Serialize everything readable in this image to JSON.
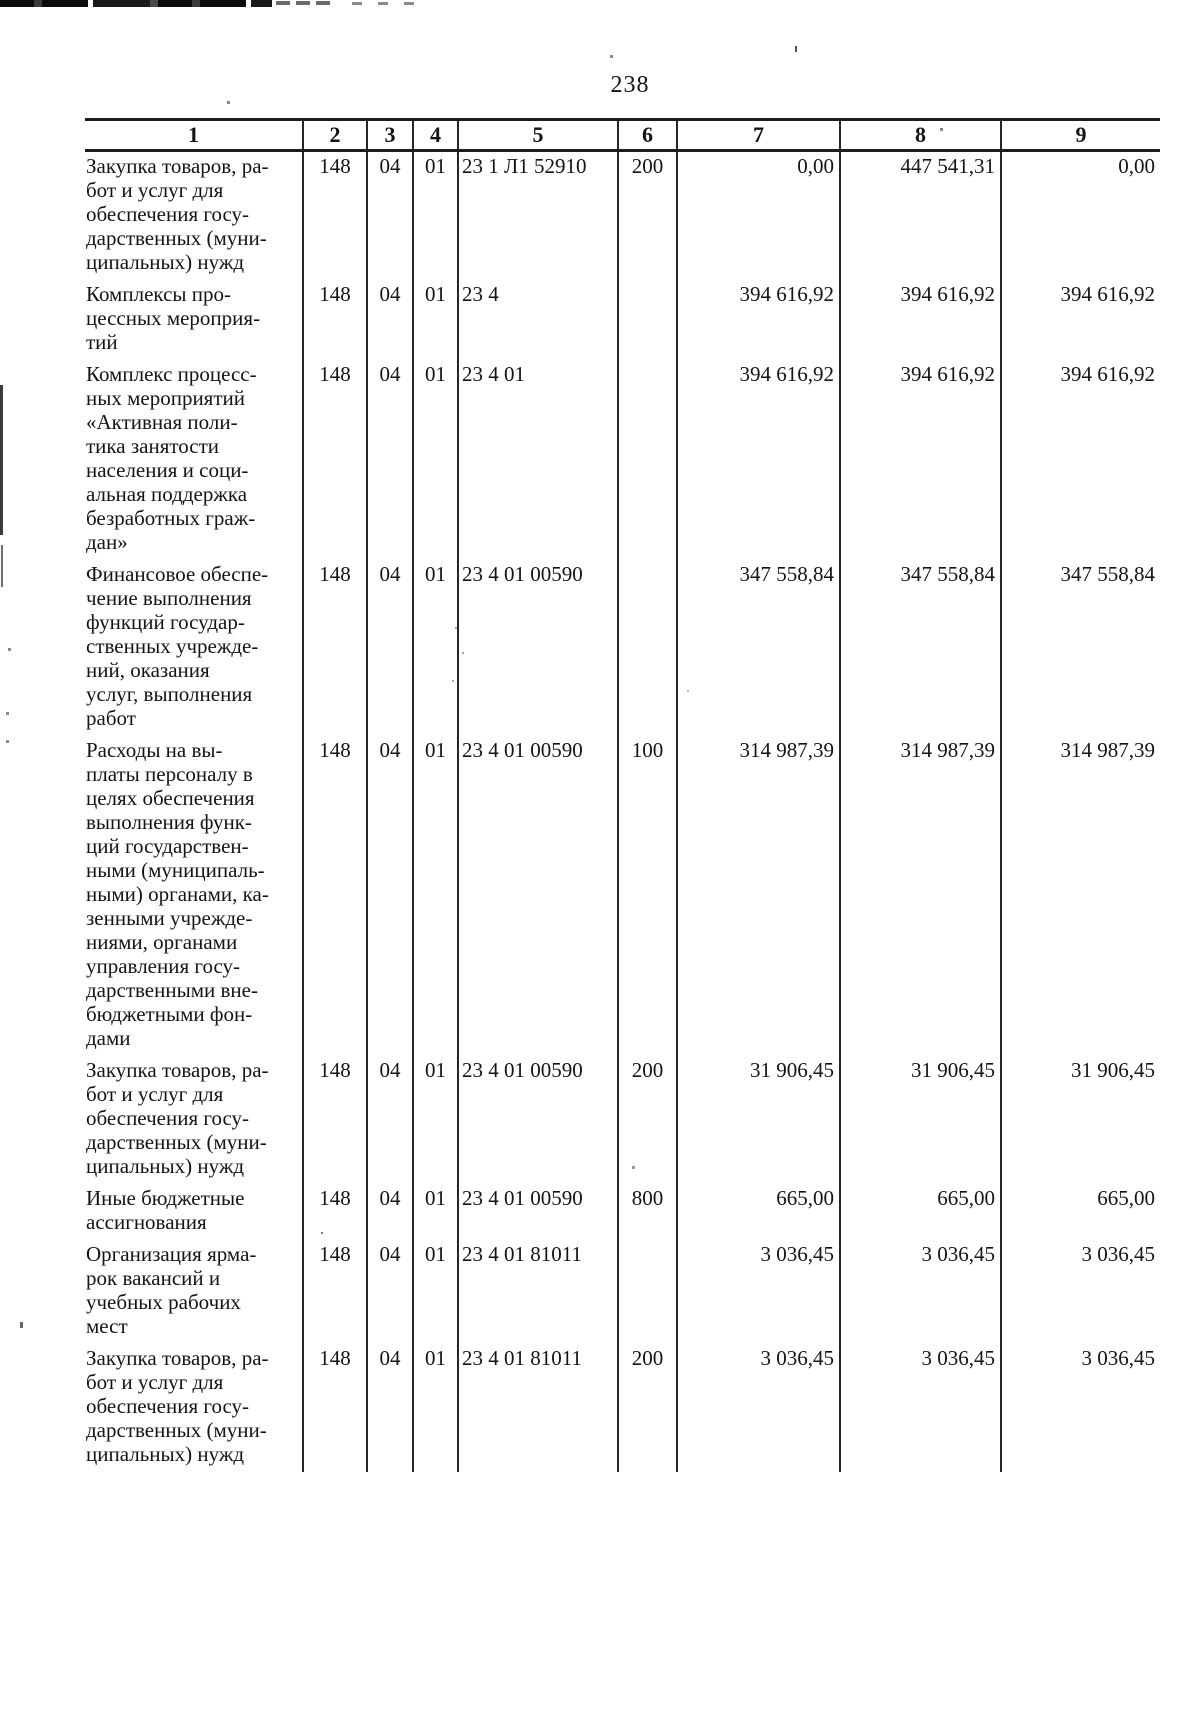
{
  "page": {
    "number": "238"
  },
  "table": {
    "headers": [
      "1",
      "2",
      "3",
      "4",
      "5",
      "6",
      "7",
      "8",
      "9"
    ],
    "rows": [
      {
        "name": [
          "Закупка товаров, ра-",
          "бот и услуг для",
          "обеспечения госу-",
          "дарственных (муни-",
          "ципальных) нужд"
        ],
        "grbs": "148",
        "razdel": "04",
        "podrazdel": "01",
        "csr": "23 1 Л1 52910",
        "vr": "200",
        "sum1": "0,00",
        "sum2": "447 541,31",
        "sum3": "0,00"
      },
      {
        "name": [
          "Комплексы про-",
          "цессных мероприя-",
          "тий"
        ],
        "grbs": "148",
        "razdel": "04",
        "podrazdel": "01",
        "csr": "23 4",
        "vr": "",
        "sum1": "394 616,92",
        "sum2": "394 616,92",
        "sum3": "394 616,92"
      },
      {
        "name": [
          "Комплекс процесс-",
          "ных мероприятий",
          "«Активная поли-",
          "тика занятости",
          "населения и соци-",
          "альная поддержка",
          "безработных граж-",
          "дан»"
        ],
        "grbs": "148",
        "razdel": "04",
        "podrazdel": "01",
        "csr": "23 4 01",
        "vr": "",
        "sum1": "394 616,92",
        "sum2": "394 616,92",
        "sum3": "394 616,92"
      },
      {
        "name": [
          "Финансовое обеспе-",
          "чение выполнения",
          "функций государ-",
          "ственных учрежде-",
          "ний, оказания",
          "услуг, выполнения",
          "работ"
        ],
        "grbs": "148",
        "razdel": "04",
        "podrazdel": "01",
        "csr": "23 4 01 00590",
        "vr": "",
        "sum1": "347 558,84",
        "sum2": "347 558,84",
        "sum3": "347 558,84"
      },
      {
        "name": [
          "Расходы на вы-",
          "платы персоналу в",
          "целях обеспечения",
          "выполнения функ-",
          "ций государствен-",
          "ными (муниципаль-",
          "ными) органами, ка-",
          "зенными учрежде-",
          "ниями, органами",
          "управления госу-",
          "дарственными вне-",
          "бюджетными фон-",
          "дами"
        ],
        "grbs": "148",
        "razdel": "04",
        "podrazdel": "01",
        "csr": "23 4 01 00590",
        "vr": "100",
        "sum1": "314 987,39",
        "sum2": "314 987,39",
        "sum3": "314 987,39"
      },
      {
        "name": [
          "Закупка товаров, ра-",
          "бот и услуг для",
          "обеспечения госу-",
          "дарственных (муни-",
          "ципальных) нужд"
        ],
        "grbs": "148",
        "razdel": "04",
        "podrazdel": "01",
        "csr": "23 4 01 00590",
        "vr": "200",
        "sum1": "31 906,45",
        "sum2": "31 906,45",
        "sum3": "31 906,45"
      },
      {
        "name": [
          "Иные бюджетные",
          "ассигнования"
        ],
        "grbs": "148",
        "razdel": "04",
        "podrazdel": "01",
        "csr": "23 4 01 00590",
        "vr": "800",
        "sum1": "665,00",
        "sum2": "665,00",
        "sum3": "665,00"
      },
      {
        "name": [
          "Организация ярма-",
          "рок вакансий и",
          "учебных рабочих",
          "мест"
        ],
        "grbs": "148",
        "razdel": "04",
        "podrazdel": "01",
        "csr": "23 4 01 81011",
        "vr": "",
        "sum1": "3 036,45",
        "sum2": "3 036,45",
        "sum3": "3 036,45"
      },
      {
        "name": [
          "Закупка товаров, ра-",
          "бот и услуг для",
          "обеспечения госу-",
          "дарственных (муни-",
          "ципальных) нужд"
        ],
        "grbs": "148",
        "razdel": "04",
        "podrazdel": "01",
        "csr": "23 4 01 81011",
        "vr": "200",
        "sum1": "3 036,45",
        "sum2": "3 036,45",
        "sum3": "3 036,45"
      }
    ]
  }
}
